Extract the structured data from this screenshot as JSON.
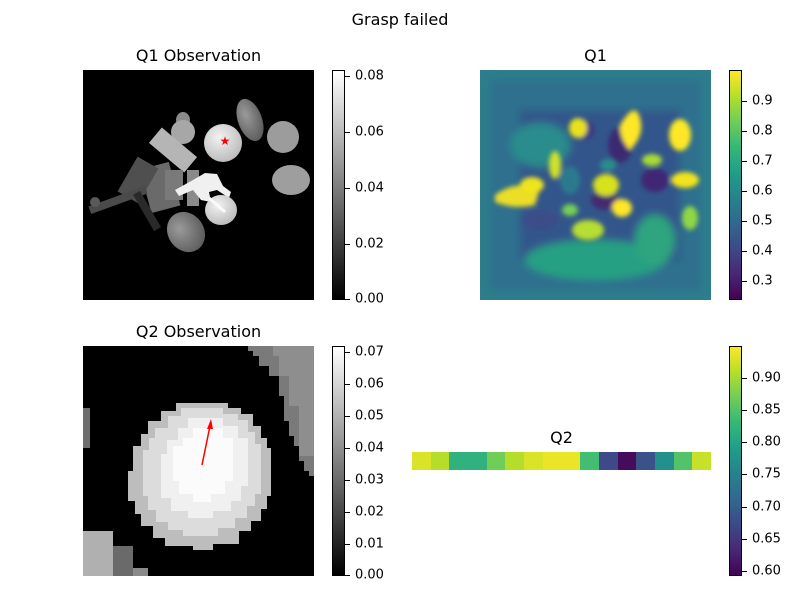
{
  "figure_title": "Grasp failed",
  "panels": {
    "q1_obs": {
      "title": "Q1 Observation",
      "colorbar_ticks": [
        "0.08",
        "0.06",
        "0.04",
        "0.02",
        "0.00"
      ],
      "colormap": "gray",
      "marker": "red star"
    },
    "q1": {
      "title": "Q1",
      "colorbar_ticks": [
        "0.9",
        "0.8",
        "0.7",
        "0.6",
        "0.5",
        "0.4",
        "0.3"
      ],
      "colormap": "viridis"
    },
    "q2_obs": {
      "title": "Q2 Observation",
      "colorbar_ticks": [
        "0.07",
        "0.06",
        "0.05",
        "0.04",
        "0.03",
        "0.02",
        "0.01",
        "0.00"
      ],
      "colormap": "gray",
      "marker": "red arrow"
    },
    "q2": {
      "title": "Q2",
      "colorbar_ticks": [
        "0.90",
        "0.85",
        "0.80",
        "0.75",
        "0.70",
        "0.65",
        "0.60"
      ],
      "colormap": "viridis"
    }
  },
  "chart_data": [
    {
      "type": "heatmap",
      "title": "Q1 Observation",
      "colorbar_range": [
        0,
        0.082
      ]
    },
    {
      "type": "heatmap",
      "title": "Q1",
      "colorbar_range": [
        0.23,
        1.0
      ]
    },
    {
      "type": "heatmap",
      "title": "Q2 Observation",
      "colorbar_range": [
        0,
        0.072
      ]
    },
    {
      "type": "heatmap",
      "title": "Q2",
      "colorbar_range": [
        0.59,
        0.95
      ],
      "values": [
        0.93,
        0.91,
        0.82,
        0.82,
        0.87,
        0.91,
        0.93,
        0.94,
        0.94,
        0.84,
        0.67,
        0.6,
        0.68,
        0.77,
        0.85,
        0.92
      ]
    }
  ],
  "colors": {
    "marker": "#ff0000",
    "viridis_low": "#440154",
    "viridis_high": "#fde725"
  }
}
